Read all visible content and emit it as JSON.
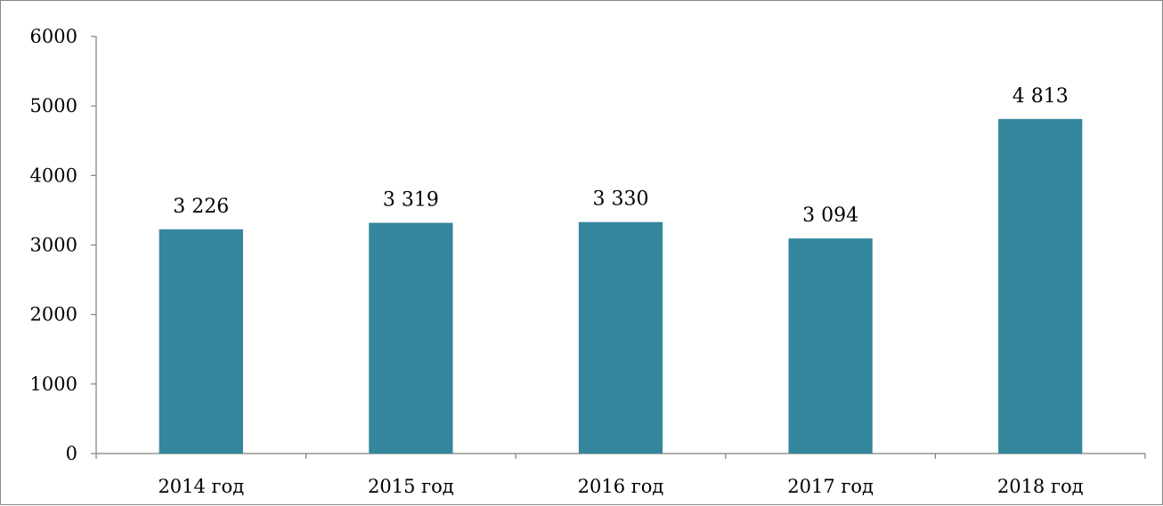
{
  "chart_data": {
    "type": "bar",
    "categories": [
      "2014 год",
      "2015 год",
      "2016 год",
      "2017 год",
      "2018 год"
    ],
    "values": [
      3226,
      3319,
      3330,
      3094,
      4813
    ],
    "data_labels": [
      "3 226",
      "3 319",
      "3 330",
      "3 094",
      "4 813"
    ],
    "title": "",
    "xlabel": "",
    "ylabel": "",
    "ylim": [
      0,
      6000
    ],
    "y_ticks": [
      "0",
      "1000",
      "2000",
      "3000",
      "4000",
      "5000",
      "6000"
    ],
    "grid": false,
    "legend": "none",
    "bar_color": "#33869C",
    "axis_color": "#7F7F7F"
  }
}
